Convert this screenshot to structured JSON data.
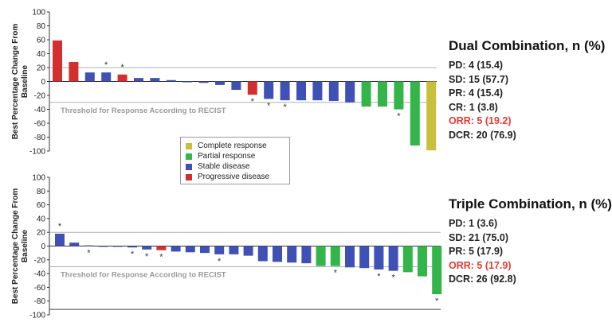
{
  "colors": {
    "complete": "#c8c03a",
    "partial": "#33b54a",
    "stable": "#3f51b5",
    "progressive": "#d32f2f",
    "threshold": "#b0b0b0",
    "red_text": "#e53935"
  },
  "chart_data": [
    {
      "type": "bar",
      "ylabel": "Best Percentage Change From Baseline",
      "ylim": [
        -100,
        100
      ],
      "yticks": [
        100,
        80,
        60,
        40,
        20,
        0,
        -20,
        -40,
        -60,
        -80,
        -100
      ],
      "threshold_text": "Threshold for Response According to RECIST",
      "reference_lines": [
        20,
        -30
      ],
      "values": [
        59,
        28,
        13,
        13,
        10,
        5,
        5,
        2,
        0,
        -2,
        -5,
        -12,
        -19,
        -25,
        -27,
        -27,
        -27,
        -28,
        -30,
        -36,
        -36,
        -40,
        -92,
        -99
      ],
      "categories": [
        "progressive",
        "progressive",
        "stable",
        "stable",
        "progressive",
        "stable",
        "stable",
        "stable",
        "stable",
        "stable",
        "stable",
        "stable",
        "progressive",
        "stable",
        "stable",
        "stable",
        "stable",
        "stable",
        "stable",
        "partial",
        "partial",
        "partial",
        "partial",
        "complete"
      ],
      "asterisks_above": [
        3,
        4
      ],
      "asterisks_below": [
        12,
        13,
        14,
        21
      ]
    },
    {
      "type": "bar",
      "ylabel": "Best Percentage Change From Baseline",
      "ylim": [
        -100,
        100
      ],
      "yticks": [
        100,
        80,
        60,
        40,
        20,
        0,
        -20,
        -40,
        -60,
        -80,
        -100
      ],
      "threshold_text": "Threshold for Response According to RECIST",
      "reference_lines": [
        20,
        -30
      ],
      "values": [
        18,
        5,
        1,
        0,
        0,
        -2,
        -5,
        -6,
        -8,
        -9,
        -10,
        -12,
        -12,
        -14,
        -22,
        -23,
        -24,
        -25,
        -29,
        -29,
        -31,
        -32,
        -34,
        -36,
        -38,
        -44,
        -70
      ],
      "categories": [
        "stable",
        "stable",
        "stable",
        "stable",
        "stable",
        "stable",
        "stable",
        "progressive",
        "stable",
        "stable",
        "stable",
        "stable",
        "stable",
        "stable",
        "stable",
        "stable",
        "stable",
        "stable",
        "partial",
        "partial",
        "stable",
        "stable",
        "stable",
        "stable",
        "partial",
        "partial",
        "partial"
      ],
      "asterisks_above": [
        0
      ],
      "asterisks_below": [
        2,
        5,
        6,
        7,
        11,
        19,
        22,
        23,
        26
      ]
    }
  ],
  "legend": {
    "items": [
      {
        "label": "Complete response",
        "color_key": "complete"
      },
      {
        "label": "Partial response",
        "color_key": "partial"
      },
      {
        "label": "Stable disease",
        "color_key": "stable"
      },
      {
        "label": "Progressive disease",
        "color_key": "progressive"
      }
    ]
  },
  "panels": [
    {
      "heading": "Dual Combination, n (%)",
      "lines": [
        "PD: 4 (15.4)",
        "SD: 15 (57.7)",
        "PR: 4 (15.4)",
        "CR: 1 (3.8)",
        "ORR: 5 (19.2)",
        "DCR: 20 (76.9)"
      ],
      "red_index": 4
    },
    {
      "heading": "Triple Combination, n (%)",
      "lines": [
        "PD: 1 (3.6)",
        "SD: 21 (75.0)",
        "PR: 5 (17.9)",
        "ORR: 5 (17.9)",
        "DCR: 26 (92.8)"
      ],
      "red_index": 3
    }
  ]
}
